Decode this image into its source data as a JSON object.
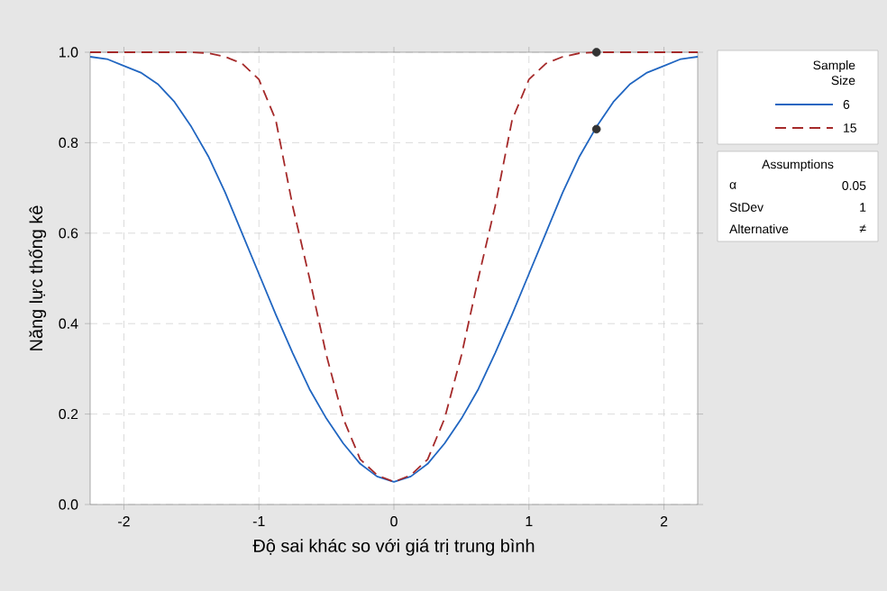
{
  "chart_data": {
    "type": "line",
    "xlabel": "Độ sai khác so với giá trị trung bình",
    "ylabel": "Năng lực thống kê",
    "xlim": [
      -2.25,
      2.25
    ],
    "ylim": [
      0,
      1.0
    ],
    "xticks": [
      -2,
      -1,
      0,
      1,
      2
    ],
    "yticks": [
      {
        "value": 0,
        "label": "0.0"
      },
      {
        "value": 0.2,
        "label": "0.2"
      },
      {
        "value": 0.4,
        "label": "0.4"
      },
      {
        "value": 0.6,
        "label": "0.6"
      },
      {
        "value": 0.8,
        "label": "0.8"
      },
      {
        "value": 1.0,
        "label": "1.0"
      }
    ],
    "grid": true,
    "legend": "right",
    "legend_title": "Sample Size",
    "series": [
      {
        "name": "6",
        "color": "#2166c1",
        "line_style": "solid",
        "marker": "none",
        "x": [
          -2.25,
          -2.125,
          -2,
          -1.875,
          -1.75,
          -1.625,
          -1.5,
          -1.375,
          -1.25,
          -1.125,
          -1,
          -0.875,
          -0.75,
          -0.625,
          -0.5,
          -0.375,
          -0.25,
          -0.125,
          0,
          0.125,
          0.25,
          0.375,
          0.5,
          0.625,
          0.75,
          0.875,
          1,
          1.125,
          1.25,
          1.375,
          1.5,
          1.625,
          1.75,
          1.875,
          2,
          2.125,
          2.25
        ],
        "values": [
          0.99,
          0.985,
          0.97,
          0.955,
          0.93,
          0.89,
          0.835,
          0.77,
          0.69,
          0.6,
          0.51,
          0.42,
          0.335,
          0.255,
          0.19,
          0.135,
          0.09,
          0.062,
          0.05,
          0.062,
          0.09,
          0.135,
          0.19,
          0.255,
          0.335,
          0.42,
          0.51,
          0.6,
          0.69,
          0.77,
          0.835,
          0.89,
          0.93,
          0.955,
          0.97,
          0.985,
          0.99
        ]
      },
      {
        "name": "15",
        "color": "#a52a2a",
        "line_style": "dashed",
        "marker": "none",
        "x": [
          -2.25,
          -1.5,
          -1.375,
          -1.25,
          -1.125,
          -1,
          -0.875,
          -0.75,
          -0.625,
          -0.5,
          -0.375,
          -0.25,
          -0.125,
          0,
          0.125,
          0.25,
          0.375,
          0.5,
          0.625,
          0.75,
          0.875,
          1,
          1.125,
          1.25,
          1.375,
          1.5,
          2.25
        ],
        "values": [
          1.0,
          1.0,
          0.998,
          0.99,
          0.975,
          0.94,
          0.85,
          0.66,
          0.5,
          0.33,
          0.19,
          0.1,
          0.065,
          0.05,
          0.065,
          0.1,
          0.19,
          0.33,
          0.5,
          0.66,
          0.85,
          0.94,
          0.975,
          0.99,
          0.998,
          1.0,
          1.0
        ]
      },
      {
        "type": "scatter",
        "color": "#333333",
        "marker": "circle",
        "x": [
          1.5,
          1.5
        ],
        "values": [
          0.83,
          1.0
        ]
      }
    ],
    "annotations": [
      "Assumptions",
      "α",
      "0.05",
      "StDev",
      "1",
      "Alternative",
      "≠"
    ]
  }
}
